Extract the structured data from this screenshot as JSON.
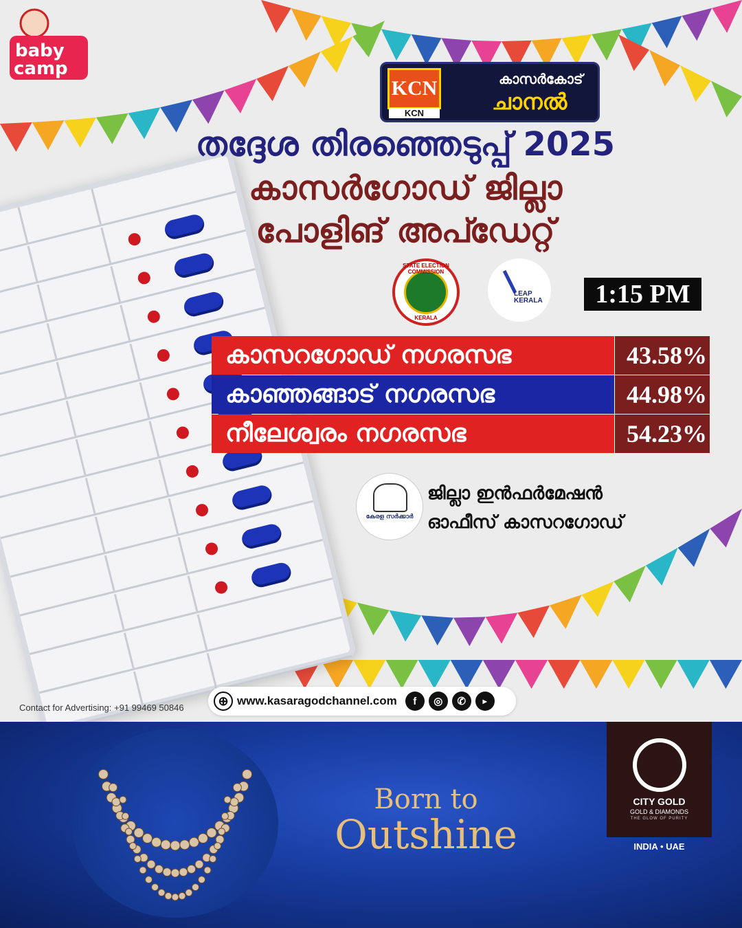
{
  "brand": {
    "sponsor_logo": "baby camp KIDS STORE",
    "channel_logo_mark": "KCN",
    "channel_logo_abbr": "KCN",
    "channel_name_line1": "കാസർകോട്",
    "channel_name_line2": "ചാനൽ"
  },
  "headline": {
    "line1": "തദ്ദേശ തിരഞ്ഞെടുപ്പ് 2025",
    "line2": "കാസർഗോഡ് ജില്ലാ",
    "line3": "പോളിങ് അപ്ഡേറ്റ്"
  },
  "logos": {
    "sec_top": "STATE ELECTION COMMISSION",
    "sec_bottom": "KERALA",
    "leap": "LEAP KERALA"
  },
  "time": "1:15 PM",
  "results": [
    {
      "name": "കാസറഗോഡ് നഗരസഭ",
      "percent": "43.58%",
      "color": "#e02222"
    },
    {
      "name": "കാഞ്ഞങ്ങാട് നഗരസഭ",
      "percent": "44.98%",
      "color": "#1a26a3"
    },
    {
      "name": "നീലേശ്വരം നഗരസഭ",
      "percent": "54.23%",
      "color": "#e02222"
    }
  ],
  "source": {
    "emblem_text": "കേരള സർക്കാർ",
    "line1": "ജില്ലാ ഇൻഫർമേഷൻ",
    "line2": "ഓഫീസ് കാസറഗോഡ്"
  },
  "footer": {
    "contact": "Contact for Advertising: +91 99469 50846",
    "website": "www.kasaragodchannel.com",
    "social_icons": [
      "facebook-icon",
      "instagram-icon",
      "whatsapp-icon",
      "youtube-icon"
    ]
  },
  "ad": {
    "tagline1": "Born to",
    "tagline2": "Outshine",
    "brand": "CITY GOLD",
    "brand_sub": "GOLD & DIAMONDS",
    "brand_motto": "THE GLOW OF PURITY",
    "regions": "INDIA • UAE"
  }
}
